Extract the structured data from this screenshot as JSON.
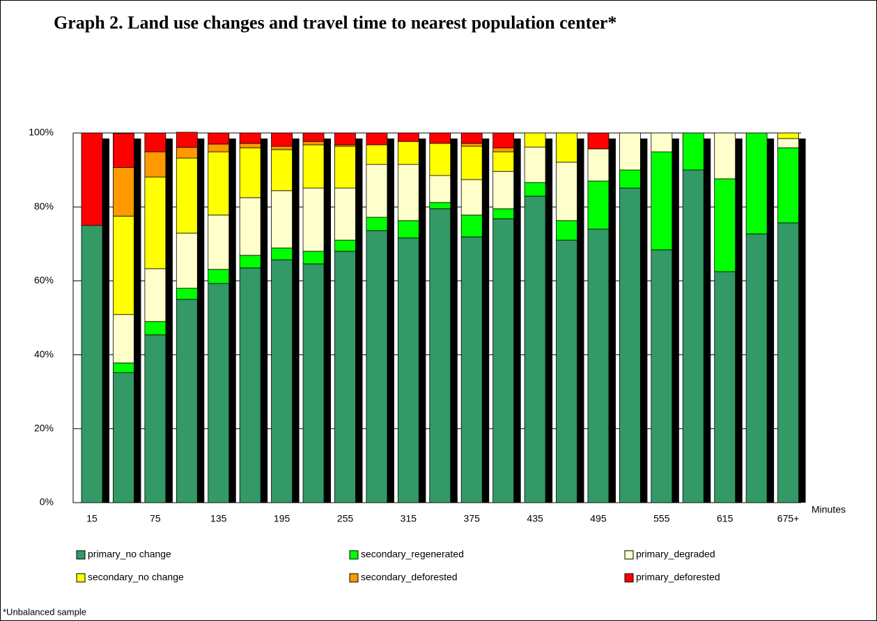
{
  "chart_data": {
    "type": "stacked_bar",
    "title": "Graph 2. Land use changes and travel time to nearest population center*",
    "x_label": "Minutes",
    "footnote": "*Unbalanced sample",
    "categories": [
      "15",
      null,
      "75",
      null,
      "135",
      null,
      "195",
      null,
      "255",
      null,
      "315",
      null,
      "375",
      null,
      "435",
      null,
      "495",
      null,
      "555",
      null,
      "615",
      null,
      "675+"
    ],
    "ylim": [
      0,
      100
    ],
    "yticks": [
      {
        "value": 0,
        "label": "0%"
      },
      {
        "value": 20,
        "label": "20%"
      },
      {
        "value": 40,
        "label": "40%"
      },
      {
        "value": 60,
        "label": "60%"
      },
      {
        "value": 80,
        "label": "80%"
      },
      {
        "value": 100,
        "label": "100%"
      }
    ],
    "grid": true,
    "series": [
      {
        "name": "primary_no change",
        "color": "#339966",
        "values": [
          75,
          35.2,
          45.4,
          55,
          59.3,
          63.5,
          65.7,
          64.6,
          68,
          73.6,
          71.6,
          79.5,
          71.9,
          76.8,
          82.9,
          71,
          74,
          85.1,
          68.4,
          90,
          62.5,
          72.7,
          75.7
        ]
      },
      {
        "name": "secondary_regenerated",
        "color": "#00ff00",
        "values": [
          0,
          2.6,
          3.6,
          3,
          3.8,
          3.4,
          3.2,
          3.4,
          3,
          3.6,
          4.7,
          1.7,
          5.9,
          2.7,
          3.7,
          5.3,
          13,
          4.9,
          26.5,
          10,
          25.1,
          27.3,
          20.3
        ]
      },
      {
        "name": "primary_degraded",
        "color": "#ffffcc",
        "values": [
          0,
          13.1,
          14.3,
          14.9,
          14.7,
          15.6,
          15.5,
          17.1,
          14.1,
          14.3,
          15.2,
          7.3,
          9.6,
          10.1,
          9.6,
          15.8,
          8.7,
          10,
          5.1,
          0,
          12.4,
          0,
          2.5
        ]
      },
      {
        "name": "secondary_no change",
        "color": "#ffff00",
        "values": [
          0,
          26.6,
          24.8,
          20.3,
          17.1,
          13.5,
          11.1,
          11.7,
          11.3,
          5.3,
          6.2,
          8.7,
          9,
          5.3,
          3.8,
          7.9,
          0,
          0,
          0,
          0,
          0,
          0,
          1.5
        ]
      },
      {
        "name": "secondary_deforested",
        "color": "#ff9900",
        "values": [
          0,
          13.2,
          6.8,
          2.9,
          2.1,
          1.2,
          0.9,
          0.9,
          0.4,
          0,
          0,
          0,
          0.8,
          1.1,
          0,
          0,
          0,
          0,
          0,
          0,
          0,
          0,
          0
        ]
      },
      {
        "name": "primary_deforested",
        "color": "#ff0000",
        "values": [
          25,
          9.2,
          5.1,
          4.1,
          3,
          2.8,
          3.6,
          2.3,
          3.2,
          3.2,
          2.3,
          2.8,
          2.8,
          4,
          0,
          0,
          4.3,
          0,
          0,
          0,
          0,
          0,
          0
        ]
      }
    ]
  }
}
